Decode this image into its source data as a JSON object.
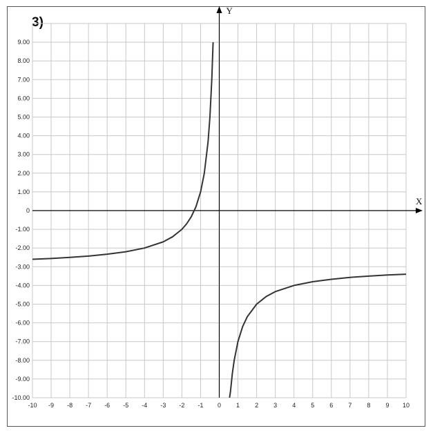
{
  "panel_label": "3)",
  "chart_data": {
    "type": "line",
    "title": "",
    "xlabel": "X",
    "ylabel": "Y",
    "xlim": [
      -10,
      10
    ],
    "ylim": [
      -10,
      10
    ],
    "grid": true,
    "x_ticks": [
      "-10",
      "-9",
      "-8",
      "-7",
      "-6",
      "-5",
      "-4",
      "-3",
      "-2",
      "-1",
      "0",
      "1",
      "2",
      "3",
      "4",
      "5",
      "6",
      "7",
      "8",
      "9",
      "10"
    ],
    "y_ticks": [
      "-10.00",
      "-9.00",
      "-8.00",
      "-7.00",
      "-6.00",
      "-5.00",
      "-4.00",
      "-3.00",
      "-2.00",
      "-1.00",
      "0",
      "1.00",
      "2.00",
      "3.00",
      "4.00",
      "5.00",
      "6.00",
      "7.00",
      "8.00",
      "9.00"
    ],
    "series": [
      {
        "branch": "left",
        "x": [
          -10,
          -9,
          -8,
          -7,
          -6,
          -5,
          -4,
          -3,
          -2.5,
          -2,
          -1.75,
          -1.5,
          -1.25,
          -1,
          -0.8,
          -0.6,
          -0.5,
          -0.4,
          -0.33
        ],
        "y": [
          -2.6,
          -2.56,
          -2.5,
          -2.43,
          -2.33,
          -2.2,
          -2.0,
          -1.67,
          -1.4,
          -1.0,
          -0.71,
          -0.33,
          0.2,
          1.0,
          2.0,
          3.67,
          5.0,
          7.0,
          9.0
        ]
      },
      {
        "branch": "right",
        "x": [
          0.55,
          0.6,
          0.7,
          0.8,
          1,
          1.25,
          1.5,
          2,
          2.5,
          3,
          4,
          5,
          6,
          7,
          8,
          9,
          10
        ],
        "y": [
          -10.0,
          -9.67,
          -8.71,
          -8.0,
          -7.0,
          -6.2,
          -5.67,
          -5.0,
          -4.6,
          -4.33,
          -4.0,
          -3.8,
          -3.67,
          -3.57,
          -3.5,
          -3.44,
          -3.4
        ]
      }
    ]
  }
}
